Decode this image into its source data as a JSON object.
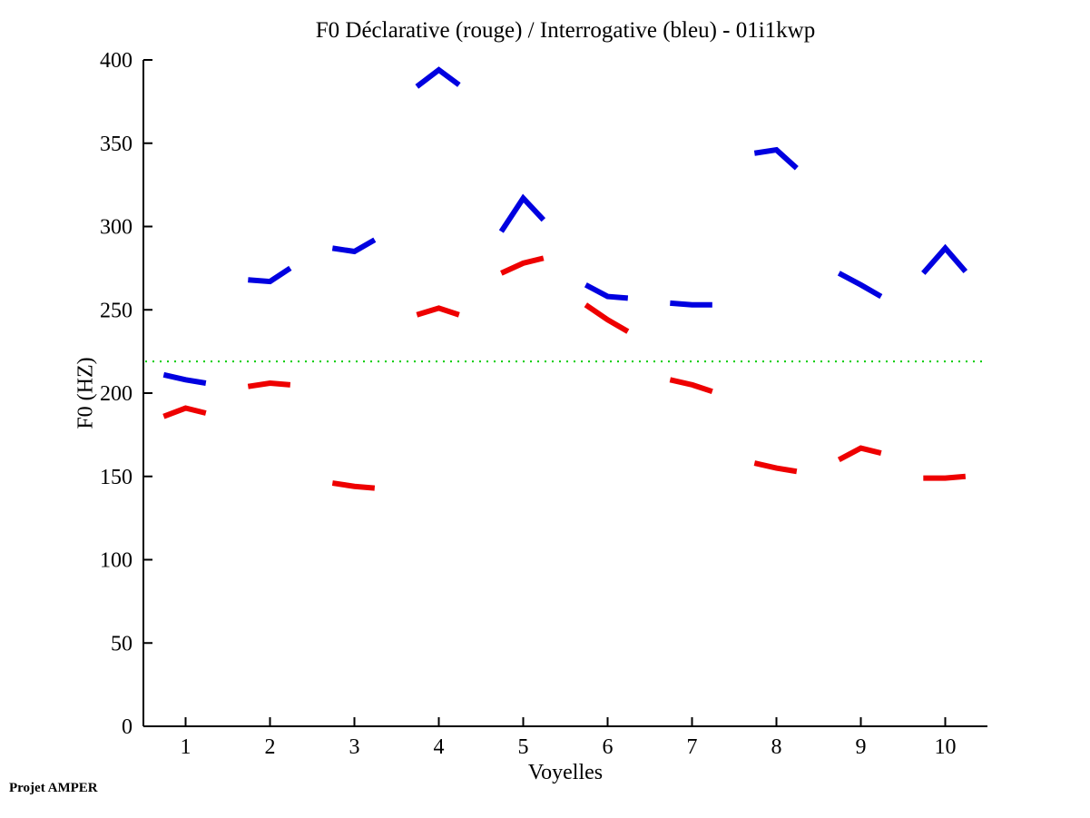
{
  "chart_data": {
    "type": "line",
    "title": "F0 Déclarative (rouge) / Interrogative (bleu) - 01i1kwp",
    "xlabel": "Voyelles",
    "ylabel": "F0 (HZ)",
    "footer_note": "Projet AMPER",
    "xlim": [
      0.5,
      10.5
    ],
    "ylim": [
      0,
      400
    ],
    "x_ticks": [
      1,
      2,
      3,
      4,
      5,
      6,
      7,
      8,
      9,
      10
    ],
    "y_ticks": [
      0,
      50,
      100,
      150,
      200,
      250,
      300,
      350,
      400
    ],
    "grid": false,
    "legend_position": "none (color meaning given in title: rouge = déclarative, bleu = interrogative)",
    "point_offsets": [
      -0.26,
      0,
      0.24
    ],
    "reference_line": {
      "value": 219,
      "color": "#00cc00",
      "style": "dotted"
    },
    "axis_color": "#000000",
    "series": [
      {
        "name": "Déclarative",
        "color": "#ee0000",
        "categories": [
          1,
          2,
          3,
          4,
          5,
          6,
          7,
          8,
          9,
          10
        ],
        "segments": [
          [
            186,
            191,
            188
          ],
          [
            204,
            206,
            205
          ],
          [
            146,
            144,
            143
          ],
          [
            247,
            251,
            247
          ],
          [
            272,
            278,
            281
          ],
          [
            253,
            244,
            237
          ],
          [
            208,
            205,
            201
          ],
          [
            158,
            155,
            153
          ],
          [
            160,
            167,
            164
          ],
          [
            149,
            149,
            150
          ]
        ]
      },
      {
        "name": "Interrogative",
        "color": "#0000e0",
        "categories": [
          1,
          2,
          3,
          4,
          5,
          6,
          7,
          8,
          9,
          10
        ],
        "segments": [
          [
            211,
            208,
            206
          ],
          [
            268,
            267,
            275
          ],
          [
            287,
            285,
            292
          ],
          [
            384,
            394,
            385
          ],
          [
            297,
            317,
            304
          ],
          [
            265,
            258,
            257
          ],
          [
            254,
            253,
            253
          ],
          [
            344,
            346,
            335
          ],
          [
            272,
            265,
            258
          ],
          [
            272,
            287,
            273
          ]
        ]
      }
    ]
  }
}
